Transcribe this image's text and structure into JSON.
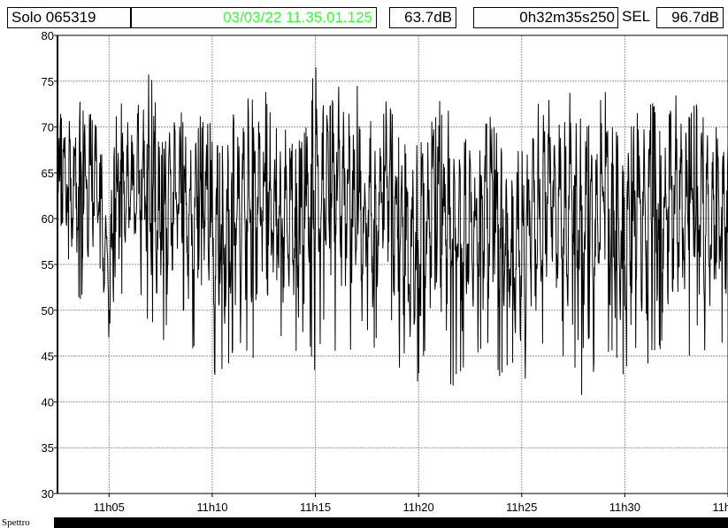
{
  "header": {
    "device": "Solo 065319",
    "timestamp": "03/03/22 11.35.01.125",
    "timestamp_color": "#33ff33",
    "leq_value": "63.7",
    "leq_unit": "dB",
    "duration": "0h32m35s250",
    "sel_label": "SEL",
    "sel_value": "96.7",
    "sel_unit": "dB"
  },
  "footer": {
    "spectro_label": "Spettro"
  },
  "chart_data": {
    "type": "line",
    "title": "",
    "xlabel": "",
    "ylabel": "",
    "ylim": [
      30,
      80
    ],
    "y_ticks": [
      "30",
      "35",
      "40",
      "45",
      "50",
      "55",
      "60",
      "65",
      "70",
      "75",
      "80"
    ],
    "x_tick_labels": [
      "11h05",
      "11h10",
      "11h15",
      "11h20",
      "11h25",
      "11h30",
      "11h35"
    ],
    "xlim_minutes": [
      "11h02.5",
      "11h35"
    ],
    "grid": true,
    "line_color": "#000000",
    "series": [
      {
        "x": [
          "11h02.5",
          "11h03",
          "11h03.5",
          "11h04",
          "11h04.5",
          "11h05",
          "11h05.5",
          "11h06",
          "11h06.5",
          "11h07",
          "11h07.5",
          "11h08",
          "11h08.5",
          "11h09",
          "11h09.5",
          "11h10",
          "11h10.5",
          "11h11",
          "11h11.5",
          "11h12",
          "11h12.5",
          "11h13",
          "11h13.5",
          "11h14",
          "11h14.5",
          "11h15",
          "11h15.5",
          "11h16",
          "11h16.5",
          "11h17",
          "11h17.5",
          "11h18",
          "11h18.5",
          "11h19",
          "11h19.5",
          "11h20",
          "11h20.5",
          "11h21",
          "11h21.5",
          "11h22",
          "11h22.5",
          "11h23",
          "11h23.5",
          "11h24",
          "11h24.5",
          "11h25",
          "11h25.5",
          "11h26",
          "11h26.5",
          "11h27",
          "11h27.5",
          "11h28",
          "11h28.5",
          "11h29",
          "11h29.5",
          "11h30",
          "11h30.5",
          "11h31",
          "11h31.5",
          "11h32",
          "11h32.5",
          "11h33",
          "11h33.5",
          "11h34",
          "11h34.5",
          "11h35"
        ],
        "min": [
          49,
          56,
          50,
          52,
          55,
          42,
          50,
          53,
          51,
          48,
          45,
          50,
          51,
          44,
          52,
          42,
          43,
          45,
          46,
          44,
          43,
          48,
          45,
          44,
          47,
          43,
          50,
          45,
          46,
          44,
          43,
          47,
          51,
          43,
          39,
          42,
          46,
          44,
          41,
          42,
          43,
          45,
          46,
          42,
          44,
          41,
          43,
          45,
          48,
          44,
          43,
          40,
          43,
          46,
          44,
          42,
          45,
          43,
          46,
          45,
          47,
          43,
          48,
          44,
          45,
          46
        ],
        "max": [
          72,
          71,
          73,
          72,
          71,
          60,
          76,
          70,
          73,
          77,
          68,
          70,
          72,
          68,
          72,
          70,
          68,
          72,
          74,
          73,
          75,
          71,
          70,
          68,
          70,
          78,
          71,
          77,
          73,
          75,
          72,
          70,
          74,
          70,
          68,
          68,
          71,
          73,
          72,
          69,
          70,
          71,
          72,
          70,
          65,
          70,
          71,
          74,
          73,
          70,
          76,
          72,
          70,
          75,
          71,
          68,
          72,
          74,
          73,
          72,
          74,
          71,
          73,
          72,
          70,
          73
        ]
      }
    ]
  }
}
